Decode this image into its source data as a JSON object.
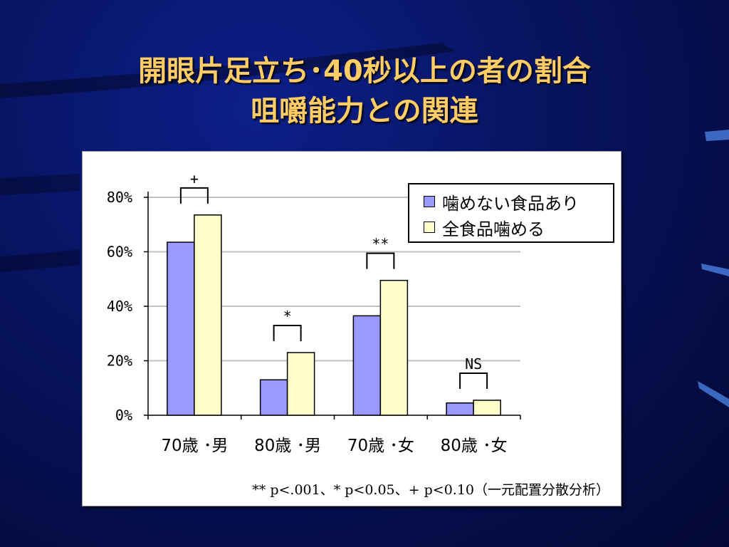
{
  "slide": {
    "title_line1": "開眼片足立ち･40秒以上の者の割合",
    "title_line2": "咀嚼能力との関連"
  },
  "chart_data": {
    "type": "bar",
    "categories": [
      "70歳 ･男",
      "80歳 ･男",
      "70歳 ･女",
      "80歳 ･女"
    ],
    "series": [
      {
        "name": "噛めない食品あり",
        "color": "#9999ff",
        "values": [
          63.5,
          13,
          36.5,
          4.5
        ]
      },
      {
        "name": "全食品噛める",
        "color": "#ffffcc",
        "values": [
          73.5,
          23,
          49.5,
          5.5
        ]
      }
    ],
    "y_ticks": [
      "0%",
      "20%",
      "40%",
      "60%",
      "80%"
    ],
    "ylim": [
      0,
      80
    ],
    "grid": true,
    "legend_position": "top-right",
    "significance": [
      "+",
      "*",
      "**",
      "NS"
    ],
    "footnote": "** p<.001、* p<0.05、+ p<0.10（一元配置分散分析）"
  }
}
